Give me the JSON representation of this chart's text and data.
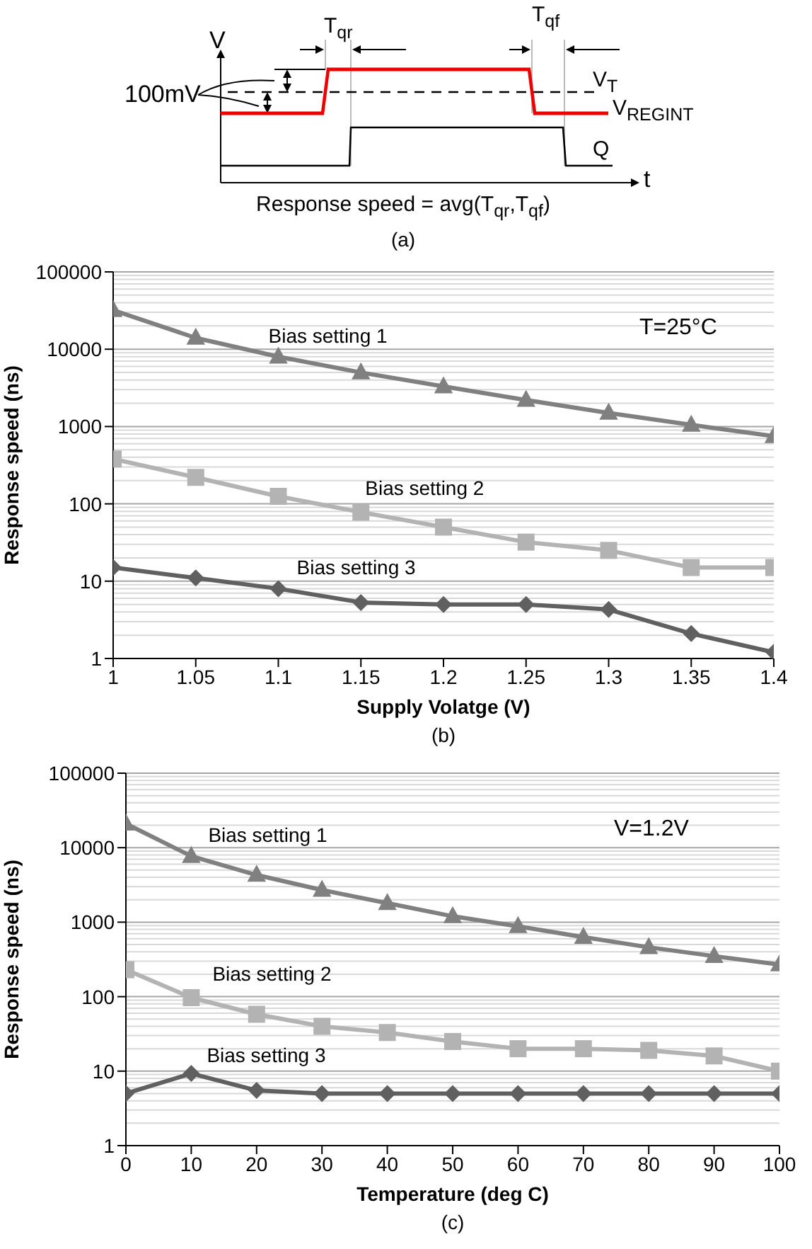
{
  "chart_data": [
    {
      "type": "other",
      "annotations": [
        "V",
        "t",
        "100mV",
        "T$_{qr}$",
        "T$_{qf}$",
        "V$_{T}$",
        "V$_{REGINT}$",
        "Q",
        "Response speed = avg(T$_{qr}$,T$_{qf}$)",
        "(a)"
      ]
    },
    {
      "type": "line",
      "xlabel": "Supply Volatge (V)",
      "ylabel": "Response speed (ns)",
      "x": [
        1,
        1.05,
        1.1,
        1.15,
        1.2,
        1.25,
        1.3,
        1.35,
        1.4
      ],
      "xlim": [
        1,
        1.4
      ],
      "xticks": [
        1,
        1.05,
        1.1,
        1.15,
        1.2,
        1.25,
        1.3,
        1.35,
        1.4
      ],
      "ylim": [
        1,
        100000
      ],
      "yticks": [
        1,
        10,
        100,
        1000,
        10000,
        100000
      ],
      "log": "y",
      "grid": "y",
      "annotations": [
        "T=25°C",
        "(b)"
      ],
      "series": [
        {
          "name": "Bias setting 1",
          "color": "#808080",
          "marker": "triangle",
          "values": [
            32000,
            14000,
            8000,
            5000,
            3300,
            2200,
            1500,
            1050,
            750
          ]
        },
        {
          "name": "Bias setting 2",
          "color": "#b3b3b3",
          "marker": "square",
          "values": [
            380,
            220,
            125,
            78,
            50,
            32,
            25,
            15,
            15
          ]
        },
        {
          "name": "Bias setting 3",
          "color": "#606060",
          "marker": "diamond",
          "values": [
            15,
            11,
            8,
            5.3,
            5,
            5,
            4.3,
            2.1,
            1.2
          ]
        }
      ]
    },
    {
      "type": "line",
      "xlabel": "Temperature (deg  C)",
      "ylabel": "Response speed (ns)",
      "x": [
        0,
        10,
        20,
        30,
        40,
        50,
        60,
        70,
        80,
        90,
        100
      ],
      "xlim": [
        0,
        100
      ],
      "xticks": [
        0,
        10,
        20,
        30,
        40,
        50,
        60,
        70,
        80,
        90,
        100
      ],
      "ylim": [
        1,
        100000
      ],
      "yticks": [
        1,
        10,
        100,
        1000,
        10000,
        100000
      ],
      "log": "y",
      "grid": "y",
      "annotations": [
        "V=1.2V",
        "(c)"
      ],
      "series": [
        {
          "name": "Bias setting 1",
          "color": "#808080",
          "marker": "triangle",
          "values": [
            21000,
            7700,
            4300,
            2700,
            1800,
            1200,
            880,
            630,
            460,
            350,
            270
          ]
        },
        {
          "name": "Bias setting 2",
          "color": "#b3b3b3",
          "marker": "square",
          "values": [
            230,
            97,
            58,
            40,
            33,
            25,
            20,
            20,
            19,
            16,
            10
          ]
        },
        {
          "name": "Bias setting 3",
          "color": "#606060",
          "marker": "diamond",
          "values": [
            5,
            9.3,
            5.5,
            5,
            5,
            5,
            5,
            5,
            5,
            5,
            5
          ]
        }
      ]
    }
  ]
}
